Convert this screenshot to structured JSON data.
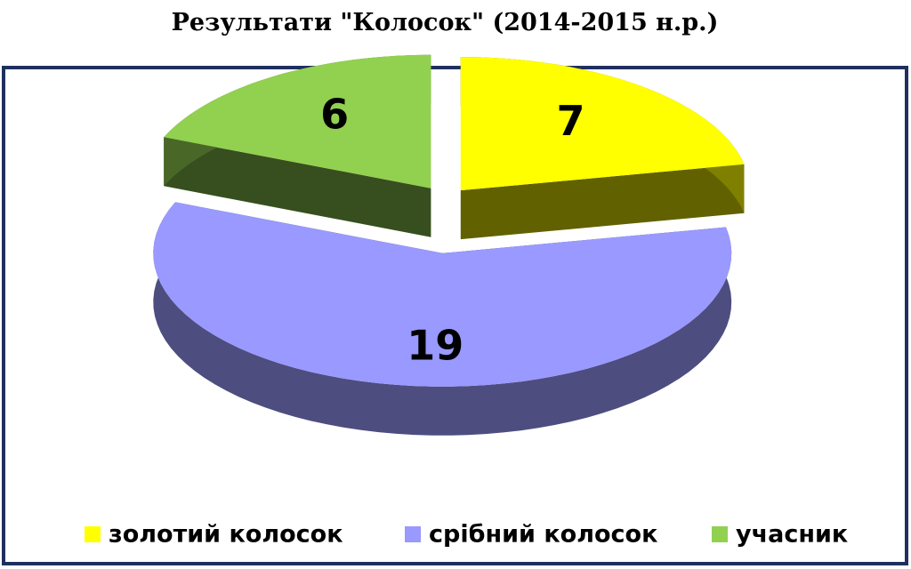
{
  "chart_data": {
    "type": "pie3d",
    "title": "Результати \"Колосок\" (2014-2015 н.р.)",
    "categories": [
      "золотий колосок",
      "срібний колосок",
      "учасник"
    ],
    "values": [
      7,
      19,
      6
    ],
    "colors": [
      "#ffff00",
      "#9999ff",
      "#92d050"
    ],
    "legend": "bottom"
  }
}
